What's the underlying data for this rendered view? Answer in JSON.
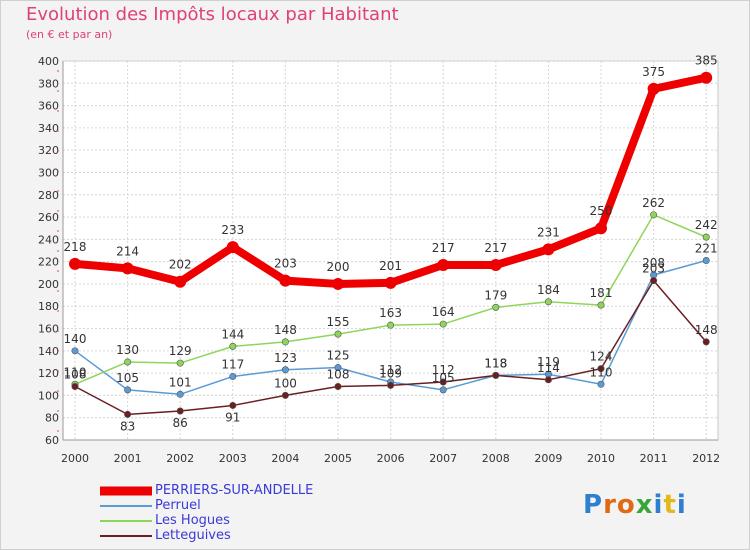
{
  "title": "Evolution des Impôts locaux par Habitant",
  "subtitle": "(en € et par an)",
  "logo": {
    "letters": [
      "P",
      "r",
      "o",
      "x",
      "i",
      "t",
      "i"
    ],
    "colors": [
      "#2f7fd0",
      "#e06a14",
      "#e06a14",
      "#3aa63a",
      "#2f7fd0",
      "#e3b81b",
      "#2f7fd0"
    ]
  },
  "chart_data": {
    "type": "line",
    "title": "Evolution des Impôts locaux par Habitant",
    "subtitle": "(en € et par an)",
    "x": [
      "2000",
      "2001",
      "2002",
      "2003",
      "2004",
      "2005",
      "2006",
      "2007",
      "2008",
      "2009",
      "2010",
      "2011",
      "2012"
    ],
    "ylim": [
      60,
      400
    ],
    "yticks": [
      60,
      80,
      100,
      120,
      140,
      160,
      180,
      200,
      220,
      240,
      260,
      280,
      300,
      320,
      340,
      360,
      380,
      400
    ],
    "grid": true,
    "series": [
      {
        "name": "PERRIERS-SUR-ANDELLE",
        "color": "#ee0000",
        "values": [
          218,
          214,
          202,
          233,
          203,
          200,
          201,
          217,
          217,
          231,
          250,
          375,
          385
        ],
        "labels": [
          "218",
          "214",
          "202",
          "233",
          "203",
          "200",
          "201",
          "217",
          "217",
          "231",
          "250",
          "375",
          "385"
        ]
      },
      {
        "name": "Perruel",
        "color": "#5b9bd5",
        "values": [
          140,
          105,
          101,
          117,
          123,
          125,
          112,
          105,
          118,
          119,
          110,
          208,
          221
        ],
        "labels": [
          "140",
          "105",
          "101",
          "117",
          "123",
          "125",
          "112",
          "105",
          "118",
          "119",
          "110",
          "208",
          "221"
        ]
      },
      {
        "name": "Les Hogues",
        "color": "#8ed65a",
        "values": [
          110,
          130,
          129,
          144,
          148,
          155,
          163,
          164,
          179,
          184,
          181,
          262,
          242
        ],
        "labels": [
          "110",
          "130",
          "129",
          "144",
          "148",
          "155",
          "163",
          "164",
          "179",
          "184",
          "181",
          "262",
          "242"
        ]
      },
      {
        "name": "Letteguives",
        "color": "#6b1f22",
        "values": [
          108,
          83,
          86,
          91,
          100,
          108,
          109,
          112,
          118,
          114,
          124,
          203,
          148
        ],
        "labels": [
          "108",
          "83",
          "86",
          "91",
          "100",
          "108",
          "109",
          "112",
          "118",
          "114",
          "124",
          "203",
          "148"
        ]
      }
    ]
  }
}
